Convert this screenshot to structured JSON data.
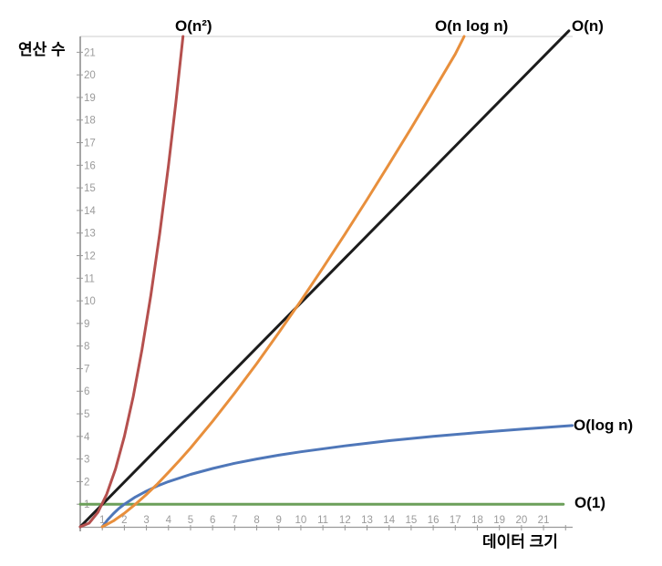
{
  "chart_data": {
    "type": "line",
    "title": "",
    "xlabel": "데이터 크기",
    "ylabel": "연산 수",
    "xlim": [
      0,
      22.32
    ],
    "ylim": [
      0,
      21.7
    ],
    "grid": false,
    "legend_position": "curve-end-labels",
    "x_ticks": [
      1,
      2,
      3,
      4,
      5,
      6,
      7,
      8,
      9,
      10,
      11,
      12,
      13,
      14,
      15,
      16,
      17,
      18,
      19,
      20,
      21
    ],
    "x_edge_tick": 22,
    "y_ticks": [
      1,
      2,
      3,
      4,
      5,
      6,
      7,
      8,
      9,
      10,
      11,
      12,
      13,
      14,
      15,
      16,
      17,
      18,
      19,
      20,
      21
    ],
    "axis_colors": {
      "left_axis": "#777777",
      "bottom_axis": "#999999",
      "top_border": "#cccccc",
      "tick": "#999999",
      "tick_label": "#9b9b9b"
    },
    "series": [
      {
        "name": "O(n²)",
        "color": "#b5504e",
        "points": [
          [
            0,
            0
          ],
          [
            0.4,
            0.16
          ],
          [
            0.8,
            0.64
          ],
          [
            1.2,
            1.44
          ],
          [
            1.6,
            2.56
          ],
          [
            2,
            4
          ],
          [
            2.4,
            5.76
          ],
          [
            2.8,
            7.84
          ],
          [
            3.2,
            10.24
          ],
          [
            3.6,
            12.96
          ],
          [
            4,
            16
          ],
          [
            4.33,
            18.75
          ],
          [
            4.66,
            21.7
          ]
        ]
      },
      {
        "name": "O(n log n)",
        "color": "#e88f3c",
        "points": [
          [
            1,
            0
          ],
          [
            1.5,
            0.26
          ],
          [
            2,
            0.6
          ],
          [
            2.5,
            1.0
          ],
          [
            3,
            1.43
          ],
          [
            3.5,
            1.9
          ],
          [
            4,
            2.41
          ],
          [
            4.5,
            2.94
          ],
          [
            5,
            3.49
          ],
          [
            6,
            4.67
          ],
          [
            7,
            5.92
          ],
          [
            8,
            7.22
          ],
          [
            9,
            8.59
          ],
          [
            10,
            10
          ],
          [
            11,
            11.46
          ],
          [
            12,
            12.95
          ],
          [
            13,
            14.48
          ],
          [
            14,
            16.05
          ],
          [
            15,
            17.64
          ],
          [
            16,
            19.27
          ],
          [
            17,
            20.92
          ],
          [
            17.4,
            21.7
          ]
        ]
      },
      {
        "name": "O(n)",
        "color": "#1c1c1c",
        "points": [
          [
            0,
            0
          ],
          [
            22.15,
            21.95
          ]
        ]
      },
      {
        "name": "O(log n)",
        "color": "#4f77b9",
        "points": [
          [
            1,
            0
          ],
          [
            1.25,
            0.32
          ],
          [
            1.5,
            0.58
          ],
          [
            1.75,
            0.81
          ],
          [
            2,
            1
          ],
          [
            2.5,
            1.32
          ],
          [
            3,
            1.58
          ],
          [
            3.5,
            1.81
          ],
          [
            4,
            2
          ],
          [
            5,
            2.32
          ],
          [
            6,
            2.58
          ],
          [
            7,
            2.81
          ],
          [
            8,
            3
          ],
          [
            9,
            3.17
          ],
          [
            10,
            3.32
          ],
          [
            12,
            3.58
          ],
          [
            14,
            3.81
          ],
          [
            16,
            4
          ],
          [
            18,
            4.17
          ],
          [
            20,
            4.32
          ],
          [
            22.3,
            4.48
          ]
        ]
      },
      {
        "name": "O(1)",
        "color": "#6c9f5a",
        "points": [
          [
            0,
            1
          ],
          [
            21.9,
            1
          ]
        ]
      }
    ]
  }
}
